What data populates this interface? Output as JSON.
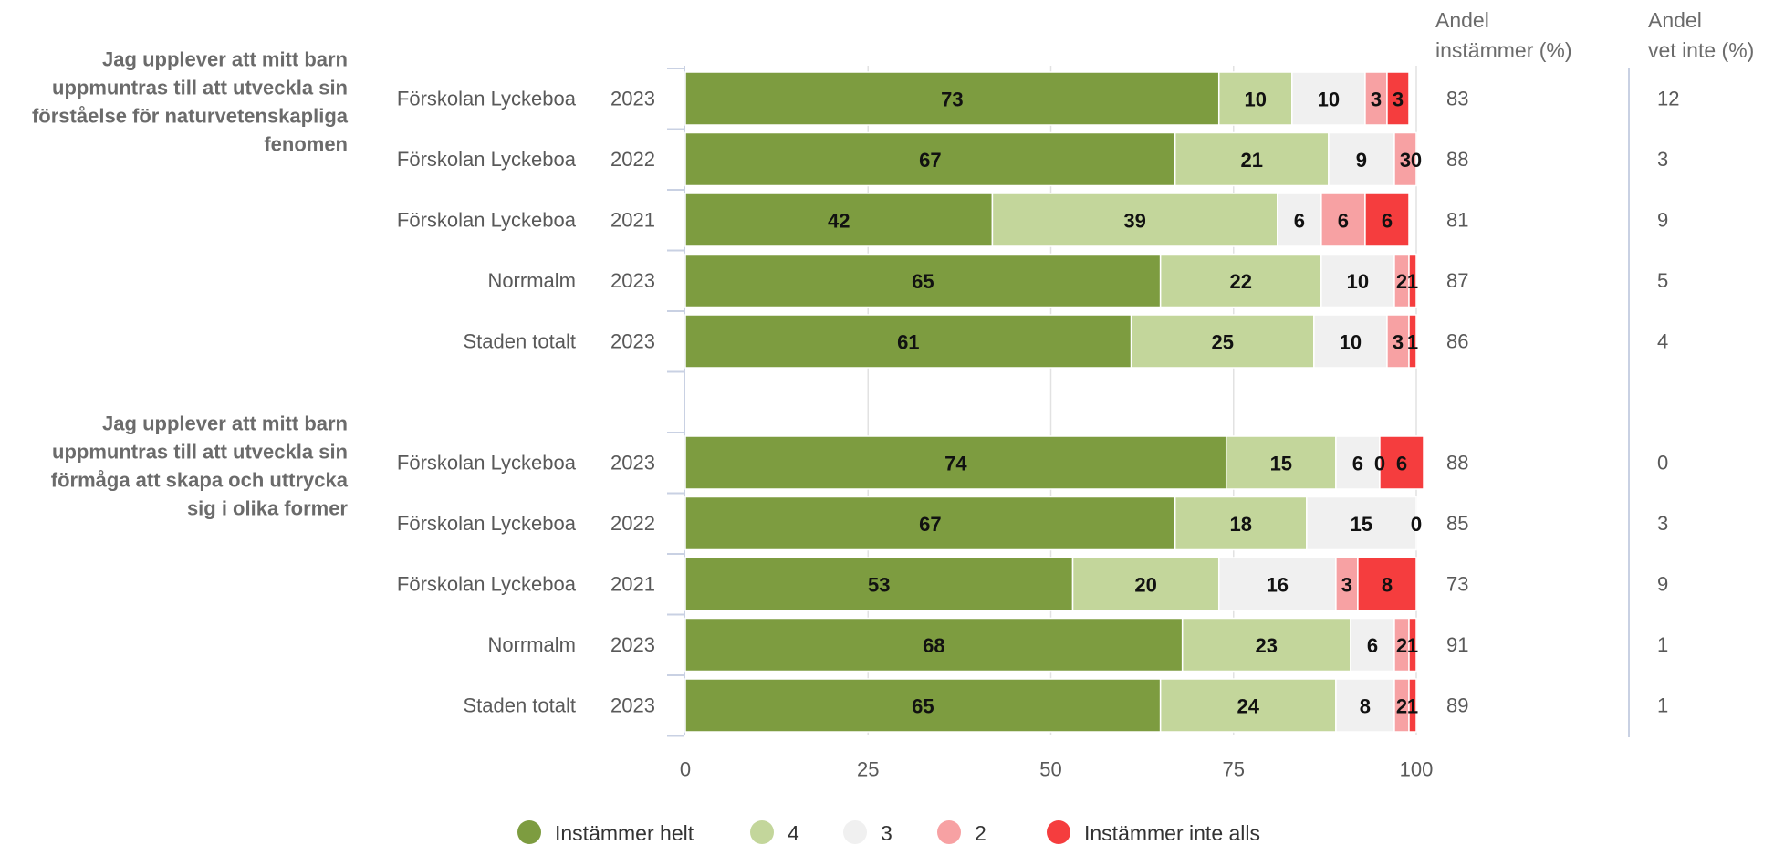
{
  "chart_data": {
    "type": "bar",
    "orientation": "horizontal",
    "stacked": true,
    "xlim": [
      0,
      100
    ],
    "x_ticks": [
      "0",
      "25",
      "50",
      "75",
      "100"
    ],
    "grid": true,
    "legend_position": "bottom",
    "series": [
      {
        "name": "Instämmer helt",
        "color": "#7d9c40"
      },
      {
        "name": "4",
        "color": "#c3d69b"
      },
      {
        "name": "3",
        "color": "#f0f0f0"
      },
      {
        "name": "2",
        "color": "#f7a1a3"
      },
      {
        "name": "Instämmer inte alls",
        "color": "#f53d3e"
      }
    ],
    "columns": [
      {
        "header_line1": "Andel",
        "header_line2": "instämmer (%)"
      },
      {
        "header_line1": "Andel",
        "header_line2": "vet inte (%)"
      }
    ],
    "groups": [
      {
        "question_lines": [
          "Jag upplever att mitt barn",
          "uppmuntras till att utveckla sin",
          "förståelse för naturvetenskapliga",
          "fenomen"
        ],
        "rows": [
          {
            "unit": "Förskolan Lyckeboa",
            "year": "2023",
            "values": [
              73,
              10,
              10,
              3,
              3
            ],
            "andel_instammer": "83",
            "andel_vet_inte": "12"
          },
          {
            "unit": "Förskolan Lyckeboa",
            "year": "2022",
            "values": [
              67,
              21,
              9,
              3,
              0
            ],
            "andel_instammer": "88",
            "andel_vet_inte": "3"
          },
          {
            "unit": "Förskolan Lyckeboa",
            "year": "2021",
            "values": [
              42,
              39,
              6,
              6,
              6
            ],
            "andel_instammer": "81",
            "andel_vet_inte": "9"
          },
          {
            "unit": "Norrmalm",
            "year": "2023",
            "values": [
              65,
              22,
              10,
              2,
              1
            ],
            "andel_instammer": "87",
            "andel_vet_inte": "5"
          },
          {
            "unit": "Staden totalt",
            "year": "2023",
            "values": [
              61,
              25,
              10,
              3,
              1
            ],
            "andel_instammer": "86",
            "andel_vet_inte": "4"
          }
        ]
      },
      {
        "question_lines": [
          "Jag upplever att mitt barn",
          "uppmuntras till att utveckla sin",
          "förmåga att skapa och uttrycka",
          "sig i olika former"
        ],
        "rows": [
          {
            "unit": "Förskolan Lyckeboa",
            "year": "2023",
            "values": [
              74,
              15,
              6,
              0,
              6
            ],
            "andel_instammer": "88",
            "andel_vet_inte": "0"
          },
          {
            "unit": "Förskolan Lyckeboa",
            "year": "2022",
            "values": [
              67,
              18,
              15,
              0,
              0
            ],
            "andel_instammer": "85",
            "andel_vet_inte": "3"
          },
          {
            "unit": "Förskolan Lyckeboa",
            "year": "2021",
            "values": [
              53,
              20,
              16,
              3,
              8
            ],
            "andel_instammer": "73",
            "andel_vet_inte": "9"
          },
          {
            "unit": "Norrmalm",
            "year": "2023",
            "values": [
              68,
              23,
              6,
              2,
              1
            ],
            "andel_instammer": "91",
            "andel_vet_inte": "1"
          },
          {
            "unit": "Staden totalt",
            "year": "2023",
            "values": [
              65,
              24,
              8,
              2,
              1
            ],
            "andel_instammer": "89",
            "andel_vet_inte": "1"
          }
        ]
      }
    ]
  }
}
